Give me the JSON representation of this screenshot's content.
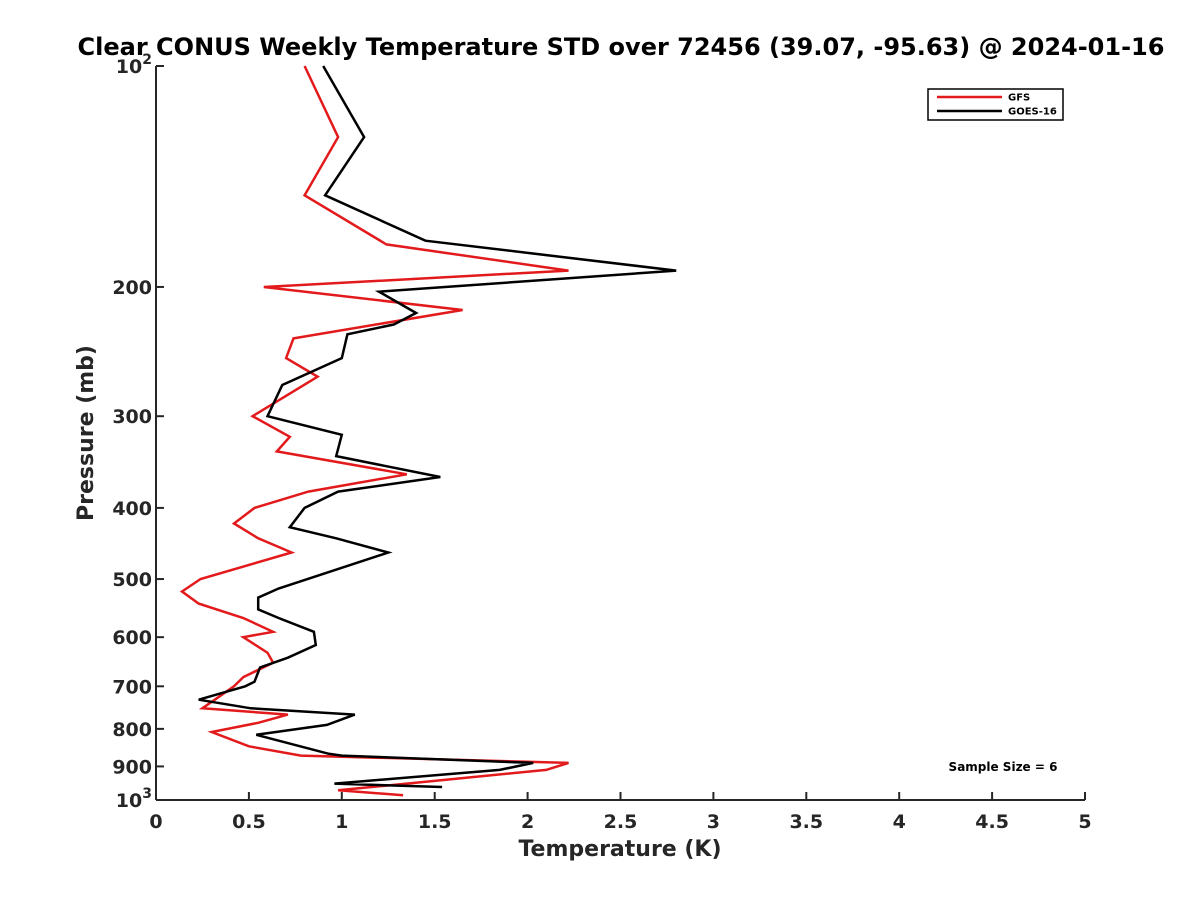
{
  "chart_data": {
    "type": "line",
    "title": "Clear CONUS Weekly Temperature STD over 72456 (39.07, -95.63) @ 2024-01-16",
    "xlabel": "Temperature (K)",
    "ylabel": "Pressure (mb)",
    "xlim": [
      0,
      5
    ],
    "ylim": [
      100,
      1000
    ],
    "yscale": "log",
    "yreversed": true,
    "x_ticks": [
      {
        "value": 0,
        "label": "0"
      },
      {
        "value": 0.5,
        "label": "0.5"
      },
      {
        "value": 1,
        "label": "1"
      },
      {
        "value": 1.5,
        "label": "1.5"
      },
      {
        "value": 2,
        "label": "2"
      },
      {
        "value": 2.5,
        "label": "2.5"
      },
      {
        "value": 3,
        "label": "3"
      },
      {
        "value": 3.5,
        "label": "3.5"
      },
      {
        "value": 4,
        "label": "4"
      },
      {
        "value": 4.5,
        "label": "4.5"
      },
      {
        "value": 5,
        "label": "5"
      }
    ],
    "y_ticks": [
      {
        "value": 100,
        "base": "10",
        "exp": "2"
      },
      {
        "value": 200,
        "label": "200"
      },
      {
        "value": 300,
        "label": "300"
      },
      {
        "value": 400,
        "label": "400"
      },
      {
        "value": 500,
        "label": "500"
      },
      {
        "value": 600,
        "label": "600"
      },
      {
        "value": 700,
        "label": "700"
      },
      {
        "value": 800,
        "label": "800"
      },
      {
        "value": 900,
        "label": "900"
      },
      {
        "value": 1000,
        "base": "10",
        "exp": "3"
      }
    ],
    "grid": false,
    "legend_position": "top-right",
    "series": [
      {
        "name": "GFS",
        "color": "#e31a1c",
        "points": [
          [
            0.8,
            100
          ],
          [
            0.98,
            125
          ],
          [
            0.8,
            150
          ],
          [
            1.24,
            175
          ],
          [
            2.22,
            190
          ],
          [
            0.58,
            200
          ],
          [
            1.65,
            215
          ],
          [
            0.74,
            235
          ],
          [
            0.7,
            250
          ],
          [
            0.87,
            265
          ],
          [
            0.52,
            300
          ],
          [
            0.72,
            320
          ],
          [
            0.65,
            335
          ],
          [
            1.35,
            360
          ],
          [
            0.82,
            380
          ],
          [
            0.53,
            400
          ],
          [
            0.42,
            420
          ],
          [
            0.55,
            440
          ],
          [
            0.73,
            460
          ],
          [
            0.24,
            500
          ],
          [
            0.14,
            520
          ],
          [
            0.23,
            540
          ],
          [
            0.47,
            565
          ],
          [
            0.63,
            590
          ],
          [
            0.47,
            600
          ],
          [
            0.6,
            630
          ],
          [
            0.63,
            650
          ],
          [
            0.47,
            680
          ],
          [
            0.42,
            700
          ],
          [
            0.25,
            750
          ],
          [
            0.71,
            765
          ],
          [
            0.55,
            785
          ],
          [
            0.3,
            808
          ],
          [
            0.5,
            845
          ],
          [
            0.78,
            870
          ],
          [
            2.22,
            890
          ],
          [
            2.1,
            910
          ],
          [
            1.35,
            950
          ],
          [
            0.98,
            970
          ],
          [
            1.33,
            985
          ]
        ]
      },
      {
        "name": "GOES-16",
        "color": "#000000",
        "points": [
          [
            0.9,
            100
          ],
          [
            1.12,
            125
          ],
          [
            0.91,
            150
          ],
          [
            1.45,
            173
          ],
          [
            2.8,
            190
          ],
          [
            1.2,
            203
          ],
          [
            1.4,
            217
          ],
          [
            1.28,
            225
          ],
          [
            1.03,
            232
          ],
          [
            1.0,
            250
          ],
          [
            0.68,
            272
          ],
          [
            0.6,
            300
          ],
          [
            1.0,
            318
          ],
          [
            0.97,
            340
          ],
          [
            1.53,
            363
          ],
          [
            0.98,
            380
          ],
          [
            0.8,
            400
          ],
          [
            0.72,
            425
          ],
          [
            0.97,
            440
          ],
          [
            1.25,
            460
          ],
          [
            0.66,
            515
          ],
          [
            0.55,
            530
          ],
          [
            0.55,
            550
          ],
          [
            0.66,
            565
          ],
          [
            0.85,
            590
          ],
          [
            0.86,
            615
          ],
          [
            0.71,
            640
          ],
          [
            0.56,
            660
          ],
          [
            0.53,
            690
          ],
          [
            0.48,
            700
          ],
          [
            0.23,
            730
          ],
          [
            0.51,
            750
          ],
          [
            1.07,
            765
          ],
          [
            0.92,
            790
          ],
          [
            0.54,
            815
          ],
          [
            0.93,
            865
          ],
          [
            1.0,
            870
          ],
          [
            2.03,
            890
          ],
          [
            1.85,
            910
          ],
          [
            0.96,
            950
          ],
          [
            1.54,
            960
          ]
        ]
      }
    ],
    "annotations": [
      {
        "text": "Sample Size = 6",
        "position": "bottom-right"
      }
    ]
  }
}
